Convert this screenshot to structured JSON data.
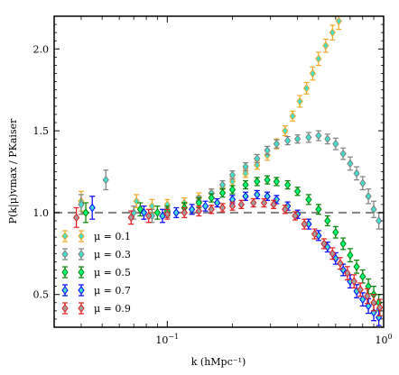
{
  "chart_data": {
    "type": "scatter",
    "xlabel": "k (hMpc⁻¹)",
    "ylabel": "P(k|μ)vmax / PKaiser",
    "xscale": "log",
    "xlim": [
      0.03,
      1.0
    ],
    "ylim": [
      0.3,
      2.2
    ],
    "x_ticks": [
      {
        "value": 0.1,
        "base": "10",
        "exp": "−1"
      },
      {
        "value": 1.0,
        "base": "10",
        "exp": "0"
      }
    ],
    "y_ticks": [
      {
        "value": 0.5,
        "label": "0.5"
      },
      {
        "value": 1.0,
        "label": "1.0"
      },
      {
        "value": 1.5,
        "label": "1.5"
      },
      {
        "value": 2.0,
        "label": "2.0"
      }
    ],
    "reference_line": {
      "y": 1.0,
      "style": "dashed",
      "color": "#808080"
    },
    "legend_position": "lower-left",
    "series": [
      {
        "name": "μ = 0.1",
        "edge": "#f5a623",
        "fill": "#40e0d0",
        "points": [
          [
            0.04,
            1.07,
            0.06
          ],
          [
            0.072,
            1.07,
            0.04
          ],
          [
            0.085,
            1.04,
            0.04
          ],
          [
            0.1,
            1.05,
            0.03
          ],
          [
            0.12,
            1.06,
            0.03
          ],
          [
            0.14,
            1.09,
            0.03
          ],
          [
            0.16,
            1.12,
            0.025
          ],
          [
            0.18,
            1.15,
            0.025
          ],
          [
            0.2,
            1.19,
            0.025
          ],
          [
            0.23,
            1.24,
            0.025
          ],
          [
            0.26,
            1.29,
            0.025
          ],
          [
            0.29,
            1.35,
            0.03
          ],
          [
            0.32,
            1.42,
            0.03
          ],
          [
            0.35,
            1.5,
            0.03
          ],
          [
            0.38,
            1.59,
            0.03
          ],
          [
            0.41,
            1.68,
            0.035
          ],
          [
            0.44,
            1.76,
            0.035
          ],
          [
            0.47,
            1.85,
            0.04
          ],
          [
            0.5,
            1.94,
            0.04
          ],
          [
            0.54,
            2.02,
            0.04
          ],
          [
            0.58,
            2.1,
            0.045
          ],
          [
            0.62,
            2.17,
            0.05
          ]
        ]
      },
      {
        "name": "μ = 0.3",
        "edge": "#808080",
        "fill": "#40e0d0",
        "points": [
          [
            0.04,
            1.05,
            0.06
          ],
          [
            0.052,
            1.2,
            0.06
          ],
          [
            0.07,
            1.0,
            0.04
          ],
          [
            0.085,
            0.98,
            0.04
          ],
          [
            0.1,
            1.0,
            0.03
          ],
          [
            0.12,
            1.03,
            0.03
          ],
          [
            0.14,
            1.07,
            0.03
          ],
          [
            0.16,
            1.12,
            0.025
          ],
          [
            0.18,
            1.17,
            0.025
          ],
          [
            0.2,
            1.23,
            0.025
          ],
          [
            0.23,
            1.28,
            0.025
          ],
          [
            0.26,
            1.33,
            0.025
          ],
          [
            0.29,
            1.38,
            0.025
          ],
          [
            0.32,
            1.42,
            0.025
          ],
          [
            0.36,
            1.44,
            0.025
          ],
          [
            0.4,
            1.45,
            0.025
          ],
          [
            0.45,
            1.46,
            0.03
          ],
          [
            0.5,
            1.47,
            0.03
          ],
          [
            0.55,
            1.45,
            0.03
          ],
          [
            0.6,
            1.42,
            0.035
          ],
          [
            0.65,
            1.36,
            0.035
          ],
          [
            0.7,
            1.3,
            0.04
          ],
          [
            0.75,
            1.24,
            0.04
          ],
          [
            0.8,
            1.18,
            0.04
          ],
          [
            0.85,
            1.1,
            0.045
          ],
          [
            0.9,
            1.02,
            0.05
          ],
          [
            0.95,
            0.95,
            0.05
          ]
        ]
      },
      {
        "name": "μ = 0.5",
        "edge": "#008000",
        "fill": "#00ff7f",
        "points": [
          [
            0.042,
            1.0,
            0.06
          ],
          [
            0.075,
            1.02,
            0.04
          ],
          [
            0.09,
            1.0,
            0.04
          ],
          [
            0.1,
            1.01,
            0.03
          ],
          [
            0.12,
            1.03,
            0.03
          ],
          [
            0.14,
            1.06,
            0.03
          ],
          [
            0.16,
            1.09,
            0.025
          ],
          [
            0.18,
            1.12,
            0.025
          ],
          [
            0.2,
            1.14,
            0.025
          ],
          [
            0.23,
            1.17,
            0.025
          ],
          [
            0.26,
            1.19,
            0.025
          ],
          [
            0.29,
            1.2,
            0.025
          ],
          [
            0.32,
            1.19,
            0.025
          ],
          [
            0.36,
            1.17,
            0.025
          ],
          [
            0.4,
            1.13,
            0.025
          ],
          [
            0.45,
            1.08,
            0.03
          ],
          [
            0.5,
            1.02,
            0.03
          ],
          [
            0.55,
            0.95,
            0.03
          ],
          [
            0.6,
            0.88,
            0.035
          ],
          [
            0.65,
            0.81,
            0.035
          ],
          [
            0.7,
            0.74,
            0.04
          ],
          [
            0.75,
            0.67,
            0.04
          ],
          [
            0.8,
            0.61,
            0.04
          ],
          [
            0.85,
            0.55,
            0.045
          ],
          [
            0.9,
            0.5,
            0.05
          ],
          [
            0.95,
            0.45,
            0.05
          ]
        ]
      },
      {
        "name": "μ = 0.7",
        "edge": "#0000ff",
        "fill": "#40e0d0",
        "points": [
          [
            0.045,
            1.03,
            0.07
          ],
          [
            0.078,
            1.0,
            0.04
          ],
          [
            0.095,
            0.98,
            0.04
          ],
          [
            0.11,
            1.0,
            0.03
          ],
          [
            0.13,
            1.02,
            0.03
          ],
          [
            0.15,
            1.04,
            0.03
          ],
          [
            0.17,
            1.06,
            0.025
          ],
          [
            0.2,
            1.08,
            0.025
          ],
          [
            0.23,
            1.1,
            0.025
          ],
          [
            0.26,
            1.11,
            0.025
          ],
          [
            0.29,
            1.1,
            0.025
          ],
          [
            0.32,
            1.08,
            0.025
          ],
          [
            0.36,
            1.04,
            0.025
          ],
          [
            0.4,
            0.99,
            0.025
          ],
          [
            0.45,
            0.93,
            0.03
          ],
          [
            0.5,
            0.86,
            0.03
          ],
          [
            0.55,
            0.79,
            0.03
          ],
          [
            0.6,
            0.72,
            0.035
          ],
          [
            0.65,
            0.65,
            0.035
          ],
          [
            0.7,
            0.58,
            0.04
          ],
          [
            0.75,
            0.52,
            0.04
          ],
          [
            0.8,
            0.47,
            0.04
          ],
          [
            0.85,
            0.43,
            0.045
          ],
          [
            0.9,
            0.39,
            0.05
          ],
          [
            0.95,
            0.36,
            0.05
          ]
        ]
      },
      {
        "name": "μ = 0.9",
        "edge": "#e41a1c",
        "fill": "#a0a0a0",
        "points": [
          [
            0.038,
            0.97,
            0.06
          ],
          [
            0.068,
            0.97,
            0.04
          ],
          [
            0.082,
            0.98,
            0.04
          ],
          [
            0.1,
            0.99,
            0.03
          ],
          [
            0.12,
            1.0,
            0.03
          ],
          [
            0.14,
            1.01,
            0.03
          ],
          [
            0.16,
            1.02,
            0.025
          ],
          [
            0.18,
            1.03,
            0.025
          ],
          [
            0.2,
            1.04,
            0.025
          ],
          [
            0.22,
            1.05,
            0.025
          ],
          [
            0.25,
            1.06,
            0.025
          ],
          [
            0.28,
            1.06,
            0.025
          ],
          [
            0.31,
            1.05,
            0.025
          ],
          [
            0.35,
            1.02,
            0.025
          ],
          [
            0.39,
            0.98,
            0.025
          ],
          [
            0.43,
            0.93,
            0.03
          ],
          [
            0.48,
            0.87,
            0.03
          ],
          [
            0.53,
            0.81,
            0.03
          ],
          [
            0.58,
            0.75,
            0.035
          ],
          [
            0.63,
            0.69,
            0.035
          ],
          [
            0.68,
            0.63,
            0.04
          ],
          [
            0.73,
            0.58,
            0.04
          ],
          [
            0.78,
            0.53,
            0.04
          ],
          [
            0.84,
            0.49,
            0.045
          ],
          [
            0.9,
            0.45,
            0.05
          ],
          [
            0.96,
            0.42,
            0.05
          ]
        ]
      }
    ]
  }
}
